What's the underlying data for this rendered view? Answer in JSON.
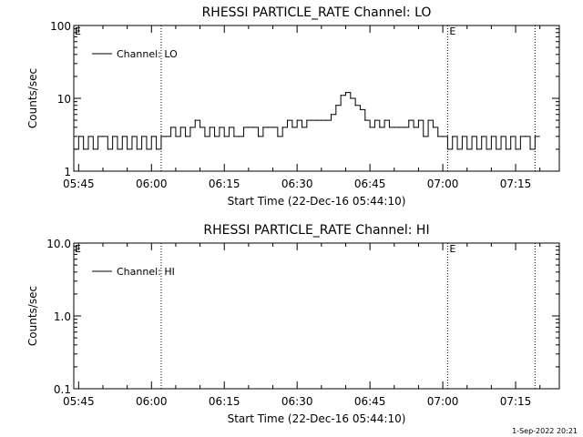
{
  "footer": {
    "timestamp": "1-Sep-2022 20:21"
  },
  "chart_data": [
    {
      "type": "line",
      "title": "RHESSI PARTICLE_RATE Channel: LO",
      "xlabel": "Start Time (22-Dec-16 05:44:10)",
      "ylabel": "Counts/sec",
      "yscale": "log",
      "ylim": [
        1,
        100
      ],
      "xlim": [
        "05:44",
        "07:24"
      ],
      "yticks": [
        "1",
        "10",
        "100"
      ],
      "xticks": [
        "05:45",
        "06:00",
        "06:15",
        "06:30",
        "06:45",
        "07:00",
        "07:15"
      ],
      "markers": [
        {
          "time": "06:02",
          "label": ""
        },
        {
          "time": "07:01",
          "label": "E"
        },
        {
          "time": "07:19",
          "label": ""
        }
      ],
      "left_marker_label": "E",
      "legend": {
        "label": "Channel: LO",
        "placement": "top-left"
      },
      "series": [
        {
          "name": "Channel: LO",
          "x": [
            "05:44",
            "05:45",
            "05:46",
            "05:47",
            "05:48",
            "05:49",
            "05:50",
            "05:51",
            "05:52",
            "05:53",
            "05:54",
            "05:55",
            "05:56",
            "05:57",
            "05:58",
            "05:59",
            "06:00",
            "06:01",
            "06:02",
            "06:03",
            "06:04",
            "06:05",
            "06:06",
            "06:07",
            "06:08",
            "06:09",
            "06:10",
            "06:11",
            "06:12",
            "06:13",
            "06:14",
            "06:15",
            "06:16",
            "06:17",
            "06:18",
            "06:19",
            "06:20",
            "06:21",
            "06:22",
            "06:23",
            "06:24",
            "06:25",
            "06:26",
            "06:27",
            "06:28",
            "06:29",
            "06:30",
            "06:31",
            "06:32",
            "06:33",
            "06:34",
            "06:35",
            "06:36",
            "06:37",
            "06:38",
            "06:39",
            "06:40",
            "06:41",
            "06:42",
            "06:43",
            "06:44",
            "06:45",
            "06:46",
            "06:47",
            "06:48",
            "06:49",
            "06:50",
            "06:51",
            "06:52",
            "06:53",
            "06:54",
            "06:55",
            "06:56",
            "06:57",
            "06:58",
            "06:59",
            "07:00",
            "07:01",
            "07:02",
            "07:03",
            "07:04",
            "07:05",
            "07:06",
            "07:07",
            "07:08",
            "07:09",
            "07:10",
            "07:11",
            "07:12",
            "07:13",
            "07:14",
            "07:15",
            "07:16",
            "07:17",
            "07:18",
            "07:19"
          ],
          "values": [
            2,
            3,
            2,
            3,
            2,
            3,
            3,
            2,
            3,
            2,
            3,
            2,
            3,
            2,
            3,
            2,
            3,
            2,
            3,
            3,
            4,
            3,
            4,
            3,
            4,
            5,
            4,
            3,
            4,
            3,
            4,
            3,
            4,
            3,
            3,
            4,
            4,
            4,
            3,
            4,
            4,
            4,
            3,
            4,
            5,
            4,
            5,
            4,
            5,
            5,
            5,
            5,
            5,
            6,
            8,
            11,
            12,
            10,
            8,
            7,
            5,
            4,
            5,
            4,
            5,
            4,
            4,
            4,
            4,
            5,
            4,
            5,
            3,
            5,
            4,
            3,
            3,
            2,
            3,
            2,
            3,
            2,
            3,
            2,
            3,
            2,
            3,
            2,
            3,
            2,
            3,
            2,
            3,
            3,
            2,
            3
          ]
        }
      ]
    },
    {
      "type": "line",
      "title": "RHESSI PARTICLE_RATE Channel: HI",
      "xlabel": "Start Time (22-Dec-16 05:44:10)",
      "ylabel": "Counts/sec",
      "yscale": "log",
      "ylim": [
        0.1,
        10
      ],
      "xlim": [
        "05:44",
        "07:24"
      ],
      "yticks": [
        "0.1",
        "1.0",
        "10.0"
      ],
      "xticks": [
        "05:45",
        "06:00",
        "06:15",
        "06:30",
        "06:45",
        "07:00",
        "07:15"
      ],
      "markers": [
        {
          "time": "06:02",
          "label": ""
        },
        {
          "time": "07:01",
          "label": "E"
        },
        {
          "time": "07:19",
          "label": ""
        }
      ],
      "left_marker_label": "E",
      "legend": {
        "label": "Channel: HI",
        "placement": "top-left"
      },
      "series": [
        {
          "name": "Channel: HI",
          "x": [],
          "values": []
        }
      ]
    }
  ]
}
